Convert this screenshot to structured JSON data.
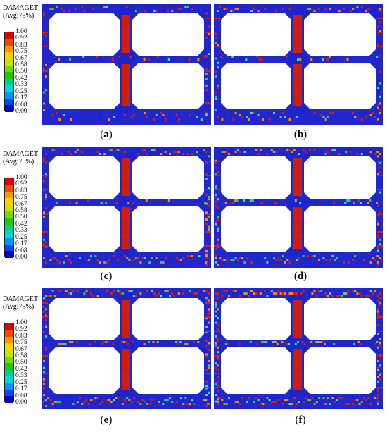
{
  "legend": {
    "title_line1": "DAMAGET",
    "title_line2": "(Avg:75%)",
    "ticks": [
      "1.00",
      "0.92",
      "0.83",
      "0.75",
      "0.67",
      "0.58",
      "0.50",
      "0.42",
      "0.33",
      "0.25",
      "0.17",
      "0.08",
      "0.00"
    ],
    "colors": [
      "#e00000",
      "#f04a00",
      "#ff9900",
      "#ffd200",
      "#c8e600",
      "#70dc00",
      "#22c800",
      "#00d28c",
      "#00d7d7",
      "#0096ff",
      "#0046ff",
      "#0000c8"
    ]
  },
  "panels": [
    {
      "id": "a",
      "label_open": "(",
      "letter": "a",
      "label_close": ")"
    },
    {
      "id": "b",
      "label_open": "(",
      "letter": "b",
      "label_close": ")"
    },
    {
      "id": "c",
      "label_open": "(",
      "letter": "c",
      "label_close": ")"
    },
    {
      "id": "d",
      "label_open": "(",
      "letter": "d",
      "label_close": ")"
    },
    {
      "id": "e",
      "label_open": "(",
      "letter": "e",
      "label_close": ")"
    },
    {
      "id": "f",
      "label_open": "(",
      "letter": "f",
      "label_close": ")"
    }
  ],
  "colors": {
    "frame_blue": "#1f24c8",
    "grid_line": "#2a36e0",
    "damage_red": "#d42010",
    "damage_orange": "#ff8a00",
    "damage_cyan": "#3fd9c8",
    "damage_green": "#38c848",
    "cell_white": "#ffffff"
  }
}
